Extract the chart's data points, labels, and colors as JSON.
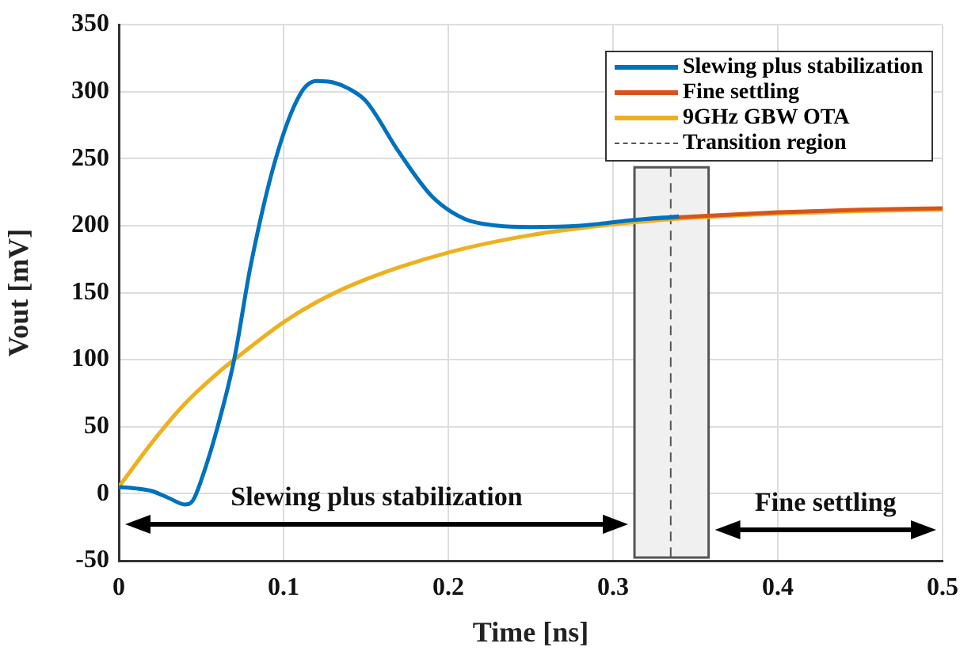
{
  "chart_data": {
    "type": "line",
    "xlabel": "Time [ns]",
    "ylabel": "Vout [mV]",
    "xlim": [
      0,
      0.5
    ],
    "xticks": [
      0,
      0.1,
      0.2,
      0.3,
      0.4,
      0.5
    ],
    "ylim": [
      -50,
      350
    ],
    "yticks": [
      -50,
      0,
      50,
      100,
      150,
      200,
      250,
      300,
      350
    ],
    "grid": true,
    "legend": "top right",
    "marker": "none",
    "line_style": "solid",
    "series": [
      {
        "name": "Slewing plus stabilization",
        "color": "#0072bd",
        "x": [
          0,
          0.01,
          0.02,
          0.03,
          0.04,
          0.045,
          0.05,
          0.06,
          0.07,
          0.08,
          0.095,
          0.11,
          0.12,
          0.13,
          0.14,
          0.15,
          0.17,
          0.19,
          0.21,
          0.23,
          0.25,
          0.28,
          0.31,
          0.34
        ],
        "values": [
          5,
          4,
          2,
          -3,
          -8,
          -5,
          10,
          50,
          100,
          170,
          249,
          298,
          308,
          307,
          302,
          293,
          255,
          222,
          205,
          200,
          199,
          200,
          204,
          207
        ]
      },
      {
        "name": "Fine settling",
        "color": "#d95319",
        "x": [
          0.32,
          0.35,
          0.4,
          0.45,
          0.5
        ],
        "values": [
          205,
          207,
          210,
          212,
          213
        ]
      },
      {
        "name": "9GHz GBW OTA",
        "color": "#edb120",
        "x": [
          0,
          0.02,
          0.04,
          0.06,
          0.07,
          0.1,
          0.12,
          0.15,
          0.2,
          0.25,
          0.3,
          0.35,
          0.4,
          0.45,
          0.5
        ],
        "values": [
          5,
          38,
          67,
          90,
          100,
          128,
          143,
          160,
          180,
          193,
          201,
          206,
          209,
          211,
          212
        ]
      }
    ],
    "ref_lines": [
      {
        "axis": "x",
        "value": 0.335,
        "label": "Transition region",
        "color": "#555555",
        "line_style": "dashed"
      }
    ],
    "bands": [
      {
        "axis": "x",
        "from": 0.313,
        "to": 0.358,
        "color": "#f0f0f0"
      }
    ],
    "annotations": [
      "Slewing plus stabilization",
      {
        "text": "Fine settling",
        "x": 0.358,
        "y": -27
      }
    ]
  }
}
